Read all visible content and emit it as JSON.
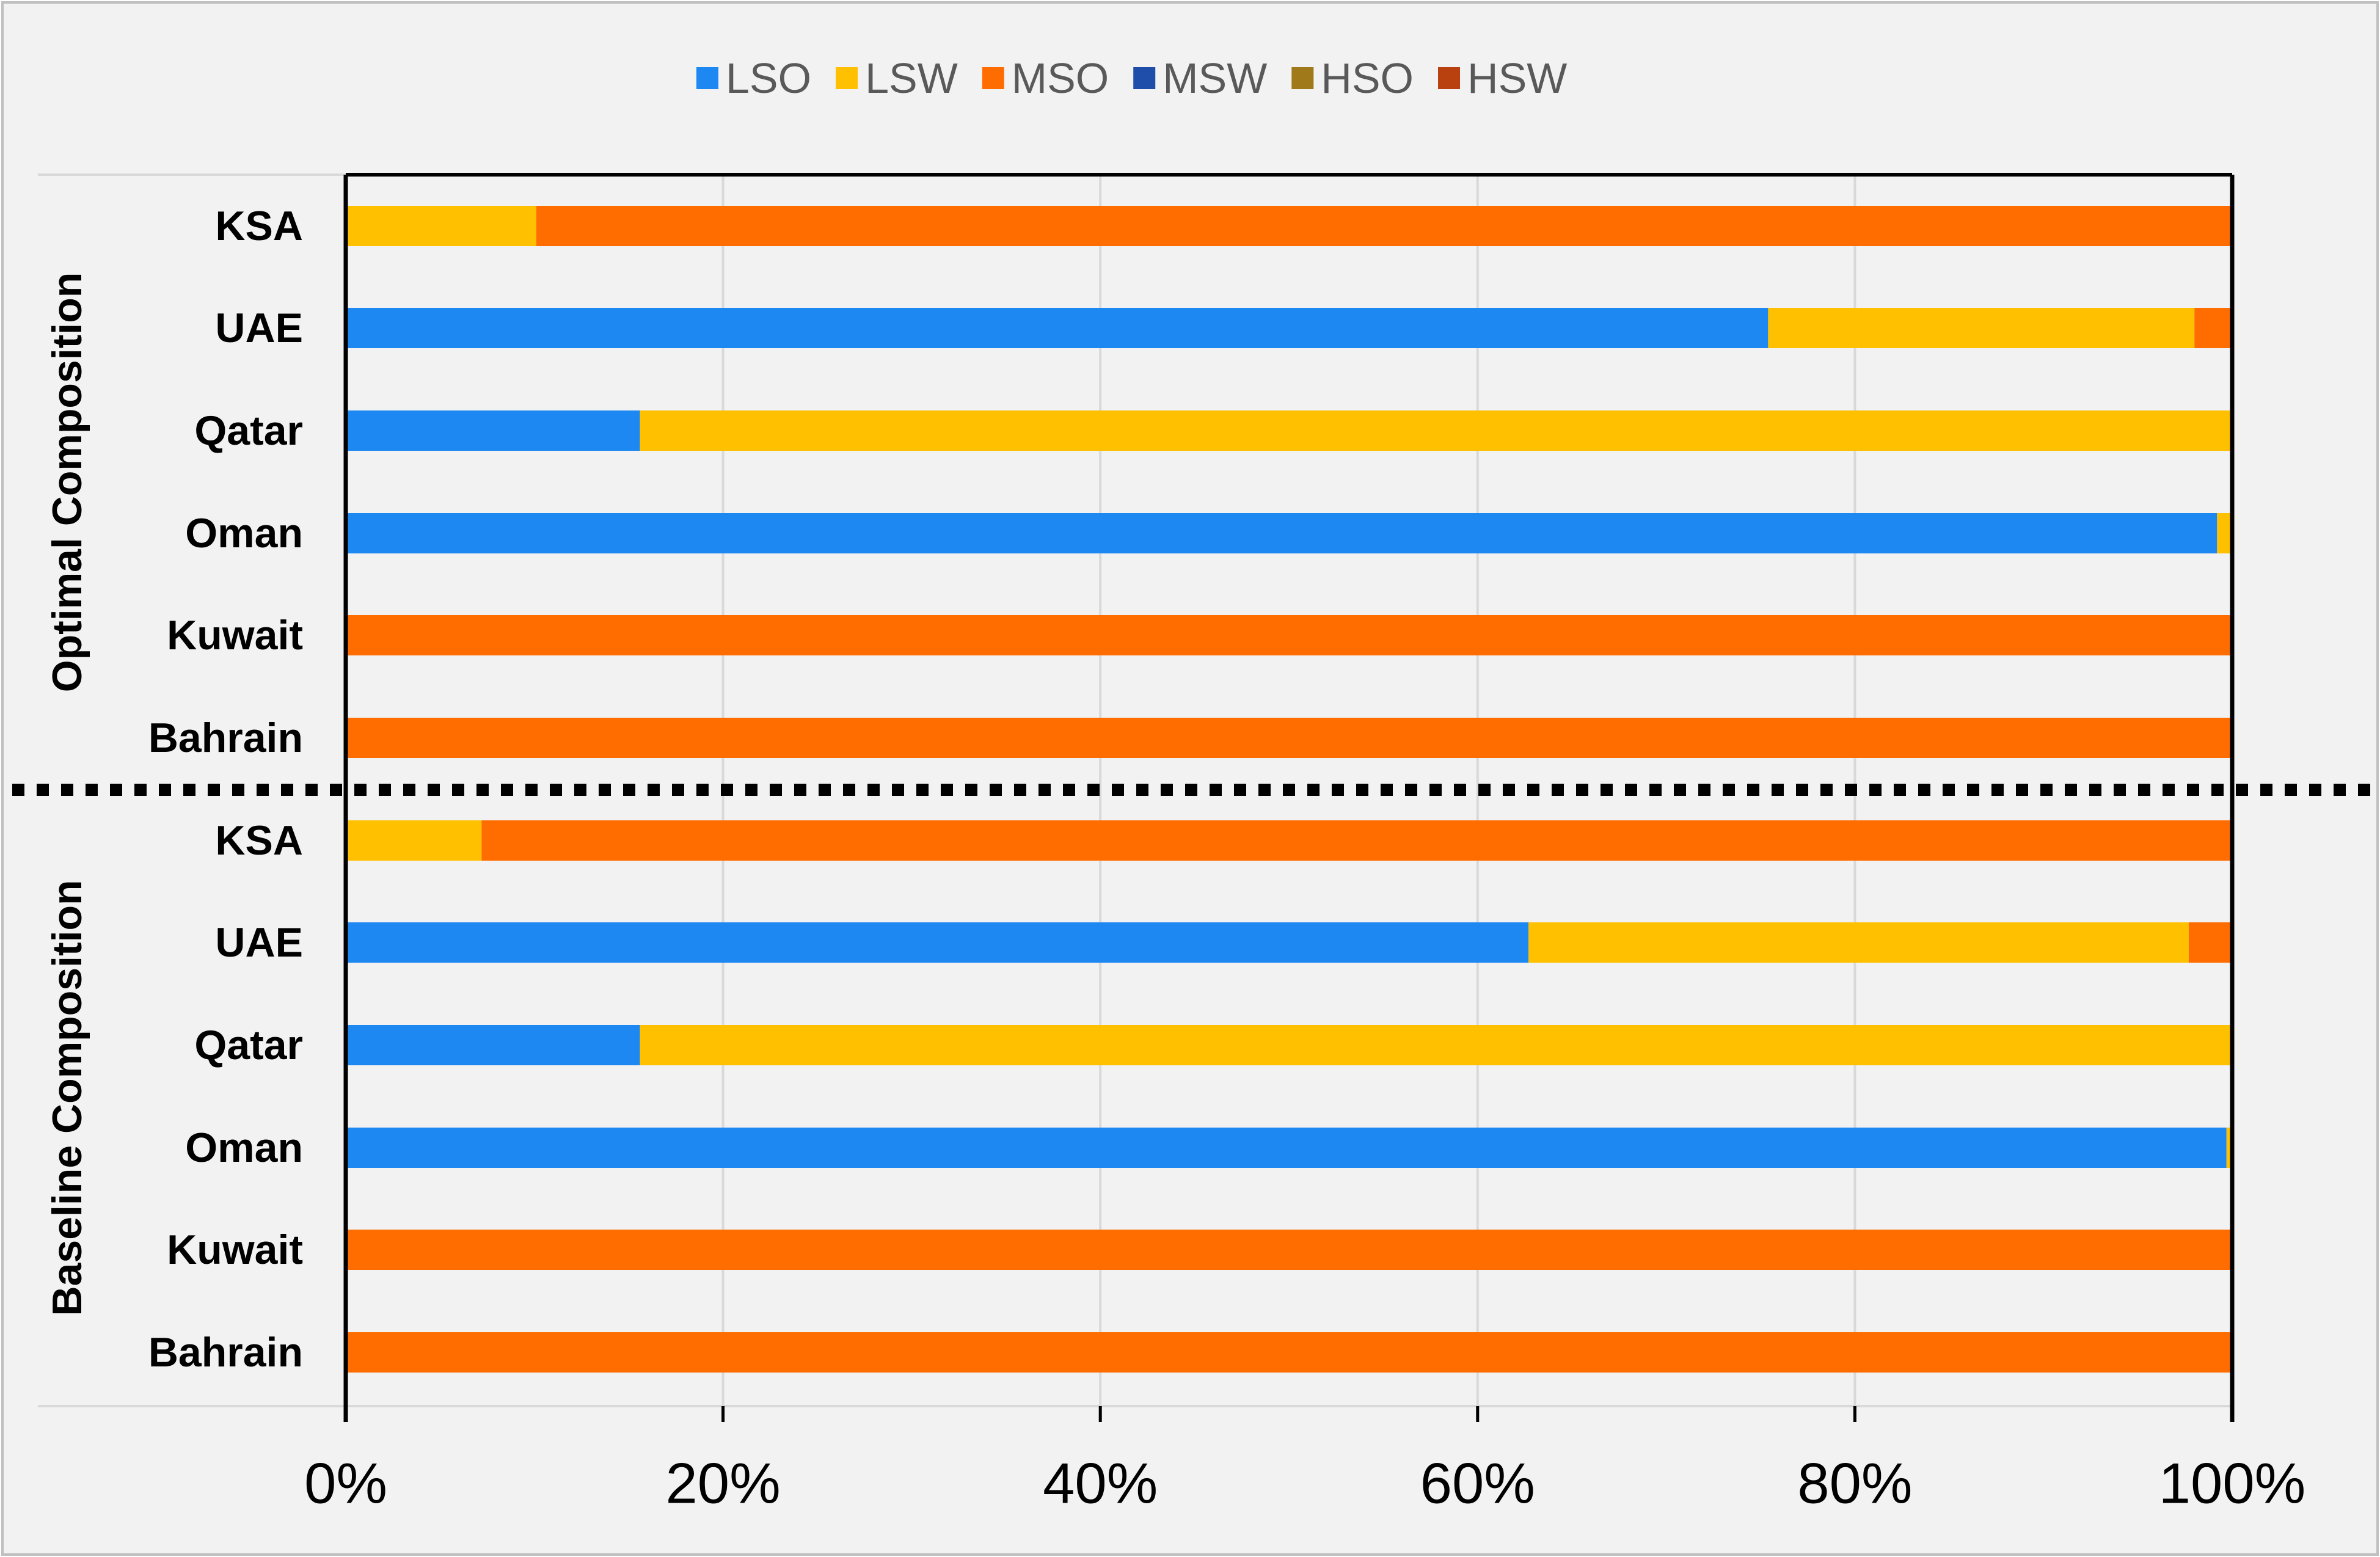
{
  "chart_data": {
    "type": "bar",
    "orientation": "horizontal",
    "stacked": true,
    "percent_stacked": true,
    "title": "",
    "xlabel": "",
    "ylabel": "",
    "xlim": [
      0,
      100
    ],
    "x_ticks": [
      "0%",
      "20%",
      "40%",
      "60%",
      "80%",
      "100%"
    ],
    "grid": true,
    "legend_position": "top",
    "series": [
      {
        "name": "LSO",
        "color": "#1E88F2"
      },
      {
        "name": "LSW",
        "color": "#FFC000"
      },
      {
        "name": "MSO",
        "color": "#FF6D00"
      },
      {
        "name": "MSW",
        "color": "#1F4EAA"
      },
      {
        "name": "HSO",
        "color": "#A07A1A"
      },
      {
        "name": "HSW",
        "color": "#B8410F"
      }
    ],
    "groups": [
      {
        "label": "Optimal Composition",
        "categories": [
          "KSA",
          "UAE",
          "Qatar",
          "Oman",
          "Kuwait",
          "Bahrain"
        ],
        "values": {
          "LSO": [
            0,
            75.4,
            15.6,
            99.2,
            0,
            0
          ],
          "LSW": [
            10.1,
            22.6,
            84.4,
            0.8,
            0,
            0
          ],
          "MSO": [
            89.9,
            2.0,
            0,
            0,
            100,
            100
          ],
          "MSW": [
            0,
            0,
            0,
            0,
            0,
            0
          ],
          "HSO": [
            0,
            0,
            0,
            0,
            0,
            0
          ],
          "HSW": [
            0,
            0,
            0,
            0,
            0,
            0
          ]
        }
      },
      {
        "label": "Baseline Composition",
        "categories": [
          "KSA",
          "UAE",
          "Qatar",
          "Oman",
          "Kuwait",
          "Bahrain"
        ],
        "values": {
          "LSO": [
            0,
            62.7,
            15.6,
            99.7,
            0,
            0
          ],
          "LSW": [
            7.2,
            35.0,
            84.4,
            0.3,
            0,
            0
          ],
          "MSO": [
            92.8,
            2.3,
            0,
            0,
            100,
            100
          ],
          "MSW": [
            0,
            0,
            0,
            0,
            0,
            0
          ],
          "HSO": [
            0,
            0,
            0,
            0,
            0,
            0
          ],
          "HSW": [
            0,
            0,
            0,
            0,
            0,
            0
          ]
        }
      }
    ]
  }
}
